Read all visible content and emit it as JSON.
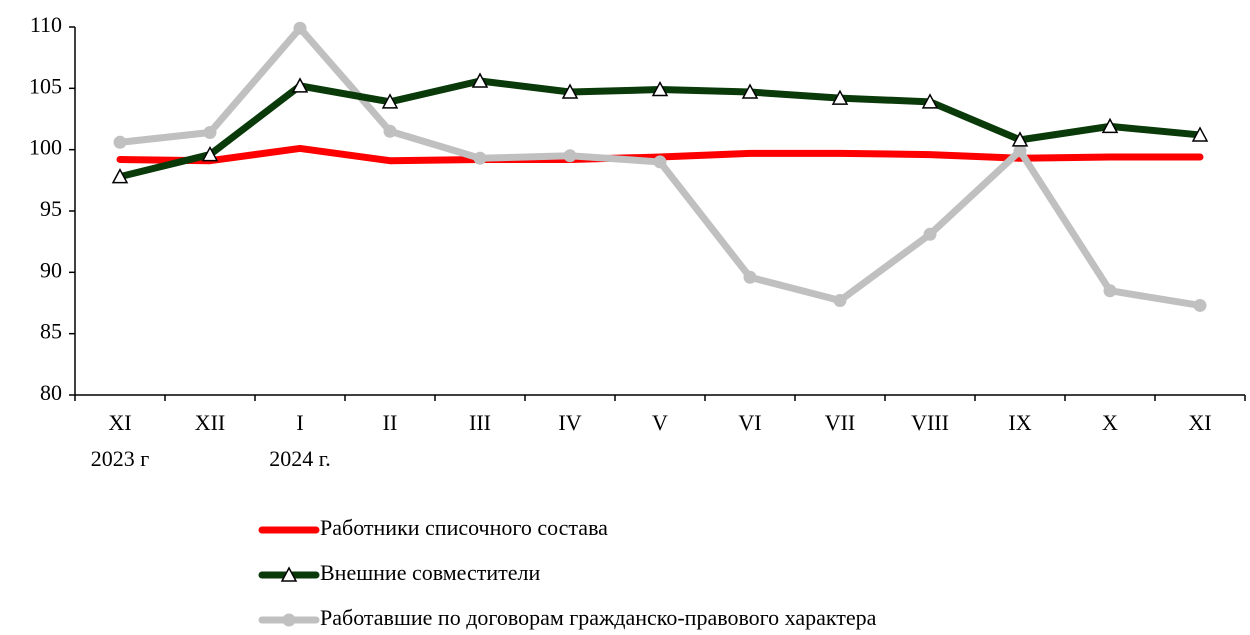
{
  "chart_data": {
    "type": "line",
    "categories": [
      "XI",
      "XII",
      "I",
      "II",
      "III",
      "IV",
      "V",
      "VI",
      "VII",
      "VIII",
      "IX",
      "X",
      "XI"
    ],
    "category_sublabels": [
      "2023 г",
      null,
      "2024 г.",
      null,
      null,
      null,
      null,
      null,
      null,
      null,
      null,
      null,
      null
    ],
    "series": [
      {
        "name": "Работники списочного состава",
        "color": "#ff0000",
        "marker": "none",
        "values": [
          99.2,
          99.1,
          100.1,
          99.1,
          99.2,
          99.2,
          99.4,
          99.7,
          99.7,
          99.6,
          99.3,
          99.4,
          99.4
        ]
      },
      {
        "name": "Внешние совместители",
        "color": "#0a3a0a",
        "marker": "triangle",
        "values": [
          97.8,
          99.6,
          105.2,
          103.9,
          105.6,
          104.7,
          104.9,
          104.7,
          104.2,
          103.9,
          100.8,
          101.9,
          101.2
        ]
      },
      {
        "name": "Работавшие по договорам гражданско-правового характера",
        "color": "#c0c0c0",
        "marker": "circle",
        "values": [
          100.6,
          101.4,
          109.9,
          101.5,
          99.3,
          99.5,
          99.0,
          89.6,
          87.7,
          93.1,
          99.9,
          88.5,
          87.3
        ]
      }
    ],
    "ylim": [
      80,
      110
    ],
    "yticks": [
      80,
      85,
      90,
      95,
      100,
      105,
      110
    ],
    "grid": false,
    "legend": "bottom"
  }
}
